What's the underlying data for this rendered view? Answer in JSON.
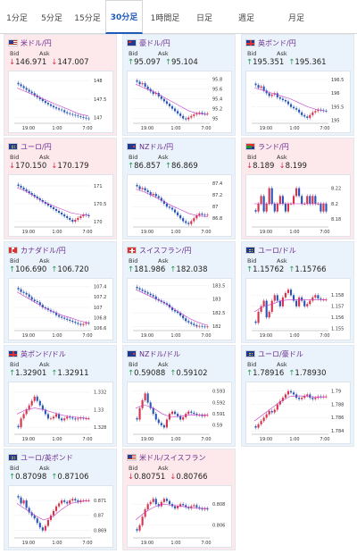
{
  "tabs": [
    {
      "label": "1分足",
      "active": false
    },
    {
      "label": "5分足",
      "active": false
    },
    {
      "label": "15分足",
      "active": false
    },
    {
      "label": "30分足",
      "active": true
    },
    {
      "label": "1時間足",
      "active": false
    },
    {
      "label": "日足",
      "active": false
    },
    {
      "label": "週足",
      "active": false
    },
    {
      "label": "月足",
      "active": false
    }
  ],
  "labels": {
    "bid": "Bid",
    "ask": "Ask"
  },
  "colors": {
    "up": "#2e9a59",
    "down": "#d6334c",
    "pair": "#6a2b8f",
    "active_tab": "#1e5bb8",
    "ma_line": "#c63bc6"
  },
  "pairs": [
    {
      "id": "usd-jpy",
      "name": "米ドル/円",
      "flag": "us",
      "direction": "down",
      "bid": "146.971",
      "ask": "147.007",
      "y_ticks": [
        "148",
        "147.5",
        "147"
      ],
      "x_ticks": [
        "19:00",
        "1:00",
        "7:00"
      ],
      "chart_data": {
        "type": "candlestick",
        "series": [
          {
            "name": "close",
            "values": [
              147.9,
              147.85,
              147.8,
              147.75,
              147.7,
              147.66,
              147.6,
              147.55,
              147.5,
              147.45,
              147.4,
              147.36,
              147.32,
              147.28,
              147.25,
              147.22,
              147.2,
              147.15,
              147.12,
              147.1,
              147.08,
              147.06,
              147.04,
              147.02,
              147.0,
              146.98,
              146.97
            ]
          }
        ],
        "ma": [
          147.8,
          147.7,
          147.6,
          147.5,
          147.4,
          147.3,
          147.2,
          147.1,
          147.05
        ],
        "ylim": [
          146.85,
          148.1
        ]
      }
    },
    {
      "id": "aud-jpy",
      "name": "豪ドル/円",
      "flag": "au",
      "direction": "up",
      "bid": "95.097",
      "ask": "95.104",
      "y_ticks": [
        "95.8",
        "95.6",
        "95.4",
        "95.2",
        "95"
      ],
      "x_ticks": [
        "19:00",
        "1:00",
        "7:00"
      ],
      "chart_data": {
        "type": "candlestick",
        "series": [
          {
            "name": "close",
            "values": [
              95.75,
              95.7,
              95.72,
              95.65,
              95.6,
              95.55,
              95.5,
              95.52,
              95.45,
              95.4,
              95.35,
              95.3,
              95.25,
              95.2,
              95.15,
              95.1,
              95.05,
              95.0,
              94.98,
              95.02,
              95.05,
              95.08,
              95.1,
              95.12,
              95.1,
              95.09,
              95.1
            ]
          }
        ],
        "ma": [
          95.7,
          95.62,
          95.55,
          95.45,
          95.35,
          95.25,
          95.15,
          95.1,
          95.08
        ],
        "ylim": [
          94.9,
          95.85
        ]
      }
    },
    {
      "id": "gbp-jpy",
      "name": "英ポンド/円",
      "flag": "gb",
      "direction": "up",
      "bid": "195.351",
      "ask": "195.361",
      "y_ticks": [
        "196.5",
        "196",
        "195.5",
        "195"
      ],
      "x_ticks": [
        "19:00",
        "1:00",
        "7:00"
      ],
      "chart_data": {
        "type": "candlestick",
        "series": [
          {
            "name": "close",
            "values": [
              196.3,
              196.2,
              196.25,
              196.1,
              196.0,
              195.9,
              195.95,
              196.0,
              195.85,
              195.8,
              195.75,
              195.7,
              195.6,
              195.5,
              195.45,
              195.4,
              195.3,
              195.2,
              195.15,
              195.1,
              195.2,
              195.3,
              195.35,
              195.4,
              195.38,
              195.36,
              195.35
            ]
          }
        ],
        "ma": [
          196.2,
          196.1,
          196.0,
          195.9,
          195.8,
          195.65,
          195.5,
          195.4,
          195.35
        ],
        "ylim": [
          194.9,
          196.6
        ]
      }
    },
    {
      "id": "eur-jpy",
      "name": "ユーロ/円",
      "flag": "eu",
      "direction": "down",
      "bid": "170.150",
      "ask": "170.179",
      "y_ticks": [
        "171",
        "170.5",
        "170"
      ],
      "x_ticks": [
        "19:00",
        "1:00",
        "7:00"
      ],
      "chart_data": {
        "type": "candlestick",
        "series": [
          {
            "name": "close",
            "values": [
              171.0,
              170.95,
              170.9,
              170.85,
              170.8,
              170.75,
              170.7,
              170.65,
              170.6,
              170.55,
              170.5,
              170.45,
              170.4,
              170.35,
              170.3,
              170.25,
              170.2,
              170.15,
              170.1,
              170.05,
              170.0,
              170.05,
              170.1,
              170.15,
              170.2,
              170.18,
              170.15
            ]
          }
        ],
        "ma": [
          170.95,
          170.85,
          170.7,
          170.55,
          170.45,
          170.35,
          170.25,
          170.2,
          170.18
        ],
        "ylim": [
          169.85,
          171.15
        ]
      }
    },
    {
      "id": "nzd-jpy",
      "name": "NZドル/円",
      "flag": "nz",
      "direction": "up",
      "bid": "86.857",
      "ask": "86.869",
      "y_ticks": [
        "87.4",
        "87.2",
        "87",
        "86.8"
      ],
      "x_ticks": [
        "19:00",
        "1:00",
        "7:00"
      ],
      "chart_data": {
        "type": "candlestick",
        "series": [
          {
            "name": "close",
            "values": [
              87.35,
              87.3,
              87.32,
              87.28,
              87.25,
              87.2,
              87.22,
              87.18,
              87.15,
              87.1,
              87.05,
              87.0,
              86.98,
              86.95,
              86.9,
              86.85,
              86.8,
              86.75,
              86.72,
              86.7,
              86.75,
              86.8,
              86.85,
              86.88,
              86.86,
              86.85,
              86.86
            ]
          }
        ],
        "ma": [
          87.3,
          87.25,
          87.18,
          87.1,
          87.02,
          86.95,
          86.88,
          86.84,
          86.83
        ],
        "ylim": [
          86.65,
          87.45
        ]
      }
    },
    {
      "id": "zar-jpy",
      "name": "ランド/円",
      "flag": "za",
      "direction": "down",
      "bid": "8.189",
      "ask": "8.199",
      "y_ticks": [
        "8.22",
        "8.2",
        "8.18"
      ],
      "x_ticks": [
        "19:00",
        "1:00",
        "7:00"
      ],
      "chart_data": {
        "type": "candlestick",
        "series": [
          {
            "name": "close",
            "values": [
              8.19,
              8.2,
              8.21,
              8.19,
              8.2,
              8.22,
              8.2,
              8.19,
              8.2,
              8.21,
              8.2,
              8.19,
              8.2,
              8.2,
              8.21,
              8.22,
              8.21,
              8.2,
              8.2,
              8.21,
              8.2,
              8.21,
              8.2,
              8.2,
              8.19,
              8.2,
              8.19
            ]
          }
        ],
        "ma": [
          8.2,
          8.2,
          8.2,
          8.2,
          8.2,
          8.2,
          8.2,
          8.2,
          8.2
        ],
        "ylim": [
          8.17,
          8.23
        ]
      }
    },
    {
      "id": "cad-jpy",
      "name": "カナダドル/円",
      "flag": "ca",
      "direction": "up",
      "bid": "106.690",
      "ask": "106.720",
      "y_ticks": [
        "107.4",
        "107.2",
        "107",
        "106.8",
        "106.6"
      ],
      "x_ticks": [
        "19:00",
        "1:00",
        "7:00"
      ],
      "chart_data": {
        "type": "candlestick",
        "series": [
          {
            "name": "close",
            "values": [
              107.35,
              107.3,
              107.28,
              107.25,
              107.2,
              107.15,
              107.12,
              107.1,
              107.05,
              107.0,
              106.98,
              106.95,
              106.92,
              106.9,
              106.85,
              106.82,
              106.8,
              106.78,
              106.76,
              106.74,
              106.72,
              106.7,
              106.68,
              106.66,
              106.68,
              106.7,
              106.69
            ]
          }
        ],
        "ma": [
          107.3,
          107.2,
          107.1,
          107.0,
          106.92,
          106.85,
          106.8,
          106.74,
          106.7
        ],
        "ylim": [
          106.55,
          107.45
        ]
      }
    },
    {
      "id": "chf-jpy",
      "name": "スイスフラン/円",
      "flag": "ch",
      "direction": "up",
      "bid": "181.986",
      "ask": "182.038",
      "y_ticks": [
        "183.5",
        "183",
        "182.5",
        "182"
      ],
      "x_ticks": [
        "19:00",
        "1:00",
        "7:00"
      ],
      "chart_data": {
        "type": "candlestick",
        "series": [
          {
            "name": "close",
            "values": [
              183.4,
              183.35,
              183.3,
              183.25,
              183.2,
              183.15,
              183.1,
              183.0,
              182.95,
              182.9,
              182.85,
              182.8,
              182.7,
              182.6,
              182.55,
              182.5,
              182.4,
              182.3,
              182.2,
              182.15,
              182.1,
              182.05,
              182.0,
              182.02,
              182.0,
              181.99,
              182.0
            ]
          }
        ],
        "ma": [
          183.35,
          183.2,
          183.05,
          182.9,
          182.7,
          182.5,
          182.3,
          182.15,
          182.05
        ],
        "ylim": [
          181.85,
          183.55
        ]
      }
    },
    {
      "id": "eur-usd",
      "name": "ユーロ/ドル",
      "flag": "eu",
      "direction": "up",
      "bid": "1.15762",
      "ask": "1.15766",
      "y_ticks": [
        "1.158",
        "1.157",
        "1.156",
        "1.155"
      ],
      "x_ticks": [
        "19:00",
        "1:00",
        "7:00"
      ],
      "chart_data": {
        "type": "candlestick",
        "series": [
          {
            "name": "close",
            "values": [
              1.1555,
              1.1565,
              1.157,
              1.1575,
              1.156,
              1.1565,
              1.1575,
              1.158,
              1.1575,
              1.157,
              1.1578,
              1.1582,
              1.1585,
              1.158,
              1.1575,
              1.157,
              1.1578,
              1.1575,
              1.157,
              1.1572,
              1.1575,
              1.1578,
              1.158,
              1.1577,
              1.1576,
              1.1576,
              1.1576
            ]
          }
        ],
        "ma": [
          1.1565,
          1.157,
          1.1572,
          1.1575,
          1.1576,
          1.1576,
          1.1576,
          1.1576,
          1.1576
        ],
        "ylim": [
          1.1548,
          1.159
        ]
      }
    },
    {
      "id": "gbp-usd",
      "name": "英ポンド/ドル",
      "flag": "gb",
      "direction": "up",
      "bid": "1.32901",
      "ask": "1.32911",
      "y_ticks": [
        "1.332",
        "1.33",
        "1.328"
      ],
      "x_ticks": [
        "19:00",
        "1:00",
        "7:00"
      ],
      "chart_data": {
        "type": "candlestick",
        "series": [
          {
            "name": "close",
            "values": [
              1.328,
              1.329,
              1.3295,
              1.33,
              1.3305,
              1.331,
              1.3315,
              1.331,
              1.3305,
              1.33,
              1.3295,
              1.329,
              1.329,
              1.3292,
              1.3295,
              1.329,
              1.3288,
              1.329,
              1.3292,
              1.3291,
              1.329,
              1.3289,
              1.329,
              1.3291,
              1.329,
              1.329,
              1.329
            ]
          }
        ],
        "ma": [
          1.3295,
          1.33,
          1.3302,
          1.33,
          1.3297,
          1.3294,
          1.3292,
          1.3291,
          1.329
        ],
        "ylim": [
          1.3272,
          1.3325
        ]
      }
    },
    {
      "id": "nzd-usd",
      "name": "NZドル/ドル",
      "flag": "nz",
      "direction": "up",
      "bid": "0.59088",
      "ask": "0.59102",
      "y_ticks": [
        "0.593",
        "0.592",
        "0.591",
        "0.59"
      ],
      "x_ticks": [
        "19:00",
        "1:00",
        "7:00"
      ],
      "chart_data": {
        "type": "candlestick",
        "series": [
          {
            "name": "close",
            "values": [
              0.5905,
              0.5915,
              0.5922,
              0.5928,
              0.592,
              0.5915,
              0.591,
              0.5905,
              0.5902,
              0.59,
              0.5898,
              0.5905,
              0.591,
              0.5912,
              0.591,
              0.5908,
              0.5905,
              0.5907,
              0.591,
              0.5912,
              0.5911,
              0.591,
              0.5909,
              0.5909,
              0.5908,
              0.5909,
              0.5909
            ]
          }
        ],
        "ma": [
          0.5915,
          0.5918,
          0.5915,
          0.591,
          0.5907,
          0.5908,
          0.5909,
          0.5909,
          0.5909
        ],
        "ylim": [
          0.5892,
          0.5933
        ]
      }
    },
    {
      "id": "eur-aud",
      "name": "ユーロ/豪ドル",
      "flag": "eu",
      "direction": "up",
      "bid": "1.78916",
      "ask": "1.78930",
      "y_ticks": [
        "1.79",
        "1.788",
        "1.786",
        "1.784"
      ],
      "x_ticks": [
        "19:00",
        "1:00",
        "7:00"
      ],
      "chart_data": {
        "type": "candlestick",
        "series": [
          {
            "name": "close",
            "values": [
              1.7845,
              1.785,
              1.7855,
              1.786,
              1.7865,
              1.787,
              1.7868,
              1.7872,
              1.788,
              1.7885,
              1.789,
              1.7895,
              1.79,
              1.7898,
              1.7895,
              1.789,
              1.7888,
              1.789,
              1.7893,
              1.7895,
              1.789,
              1.7888,
              1.789,
              1.7892,
              1.7891,
              1.7892,
              1.7892
            ]
          }
        ],
        "ma": [
          1.7855,
          1.7865,
          1.7875,
          1.7885,
          1.7892,
          1.7893,
          1.7892,
          1.7891,
          1.7891
        ],
        "ylim": [
          1.7835,
          1.7905
        ]
      }
    },
    {
      "id": "eur-gbp",
      "name": "ユーロ/英ポンド",
      "flag": "eu",
      "direction": "up",
      "bid": "0.87098",
      "ask": "0.87106",
      "y_ticks": [
        "0.871",
        "0.87",
        "0.869"
      ],
      "x_ticks": [
        "19:00",
        "1:00",
        "7:00"
      ],
      "chart_data": {
        "type": "candlestick",
        "series": [
          {
            "name": "close",
            "values": [
              0.8712,
              0.8708,
              0.871,
              0.8705,
              0.8702,
              0.87,
              0.8698,
              0.8695,
              0.8692,
              0.869,
              0.8693,
              0.8697,
              0.87,
              0.8703,
              0.8706,
              0.8708,
              0.871,
              0.8709,
              0.8708,
              0.871,
              0.8711,
              0.871,
              0.8709,
              0.871,
              0.871,
              0.871,
              0.871
            ]
          }
        ],
        "ma": [
          0.8708,
          0.8704,
          0.87,
          0.8697,
          0.8699,
          0.8704,
          0.8708,
          0.8709,
          0.871
        ],
        "ylim": [
          0.8685,
          0.8716
        ]
      }
    },
    {
      "id": "usd-chf",
      "name": "米ドル/スイスフラン",
      "flag": "us",
      "direction": "down",
      "bid": "0.80751",
      "ask": "0.80766",
      "y_ticks": [
        "0.808",
        "0.806"
      ],
      "x_ticks": [
        "19:00",
        "1:00",
        "7:00"
      ],
      "chart_data": {
        "type": "candlestick",
        "series": [
          {
            "name": "close",
            "values": [
              0.8055,
              0.806,
              0.8068,
              0.8075,
              0.808,
              0.8082,
              0.8085,
              0.808,
              0.8078,
              0.8082,
              0.8085,
              0.8083,
              0.808,
              0.8078,
              0.8076,
              0.8078,
              0.808,
              0.8079,
              0.8077,
              0.8076,
              0.8078,
              0.8079,
              0.8077,
              0.8076,
              0.8075,
              0.8076,
              0.8075
            ]
          }
        ],
        "ma": [
          0.8065,
          0.8072,
          0.8077,
          0.808,
          0.8079,
          0.8078,
          0.8077,
          0.8076,
          0.8076
        ],
        "ylim": [
          0.8048,
          0.8092
        ]
      }
    }
  ]
}
